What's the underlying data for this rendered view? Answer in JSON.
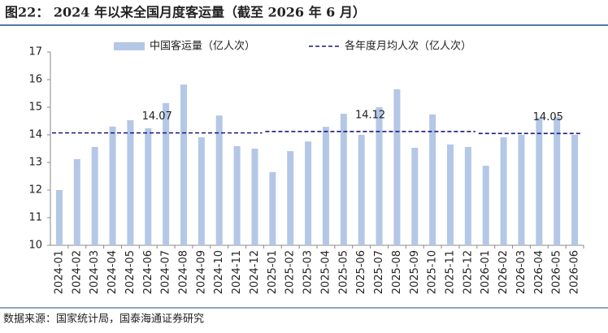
{
  "chart_data": {
    "type": "bar",
    "title": "图22：  2024 年以来全国月度客运量（截至 2026 年 6 月）",
    "source": "数据来源：国家统计局，国泰海通证券研究",
    "categories": [
      "2024-01",
      "2024-02",
      "2024-03",
      "2024-04",
      "2024-05",
      "2024-06",
      "2024-07",
      "2024-08",
      "2024-09",
      "2024-10",
      "2024-11",
      "2024-12",
      "2025-01",
      "2025-02",
      "2025-03",
      "2025-04",
      "2025-05",
      "2025-06",
      "2025-07",
      "2025-08",
      "2025-09",
      "2025-10",
      "2025-11",
      "2025-12",
      "2026-01",
      "2026-02",
      "2026-03",
      "2026-04",
      "2026-05",
      "2026-06"
    ],
    "series": [
      {
        "name": "中国客运量（亿人次）",
        "type": "bar",
        "color": "#b4c7e7",
        "values": [
          12.0,
          13.12,
          13.56,
          14.3,
          14.53,
          14.24,
          15.15,
          15.82,
          13.91,
          14.7,
          13.59,
          13.5,
          12.65,
          13.41,
          13.76,
          14.29,
          14.76,
          14.0,
          15.0,
          15.65,
          13.53,
          14.74,
          13.65,
          13.56,
          12.88,
          13.91,
          14.0,
          14.62,
          14.65,
          14.0
        ]
      },
      {
        "name": "各年度月均人次（亿人次）",
        "type": "dashed-line",
        "color": "#1a1a7a",
        "values": [
          14.07,
          14.07,
          14.07,
          14.07,
          14.07,
          14.07,
          14.07,
          14.07,
          14.07,
          14.07,
          14.07,
          14.07,
          14.12,
          14.12,
          14.12,
          14.12,
          14.12,
          14.12,
          14.12,
          14.12,
          14.12,
          14.12,
          14.12,
          14.12,
          14.05,
          14.05,
          14.05,
          14.05,
          14.05,
          14.05
        ]
      }
    ],
    "ylim": [
      10,
      17
    ],
    "yticks": [
      10,
      11,
      12,
      13,
      14,
      15,
      16,
      17
    ],
    "legend": "top"
  }
}
